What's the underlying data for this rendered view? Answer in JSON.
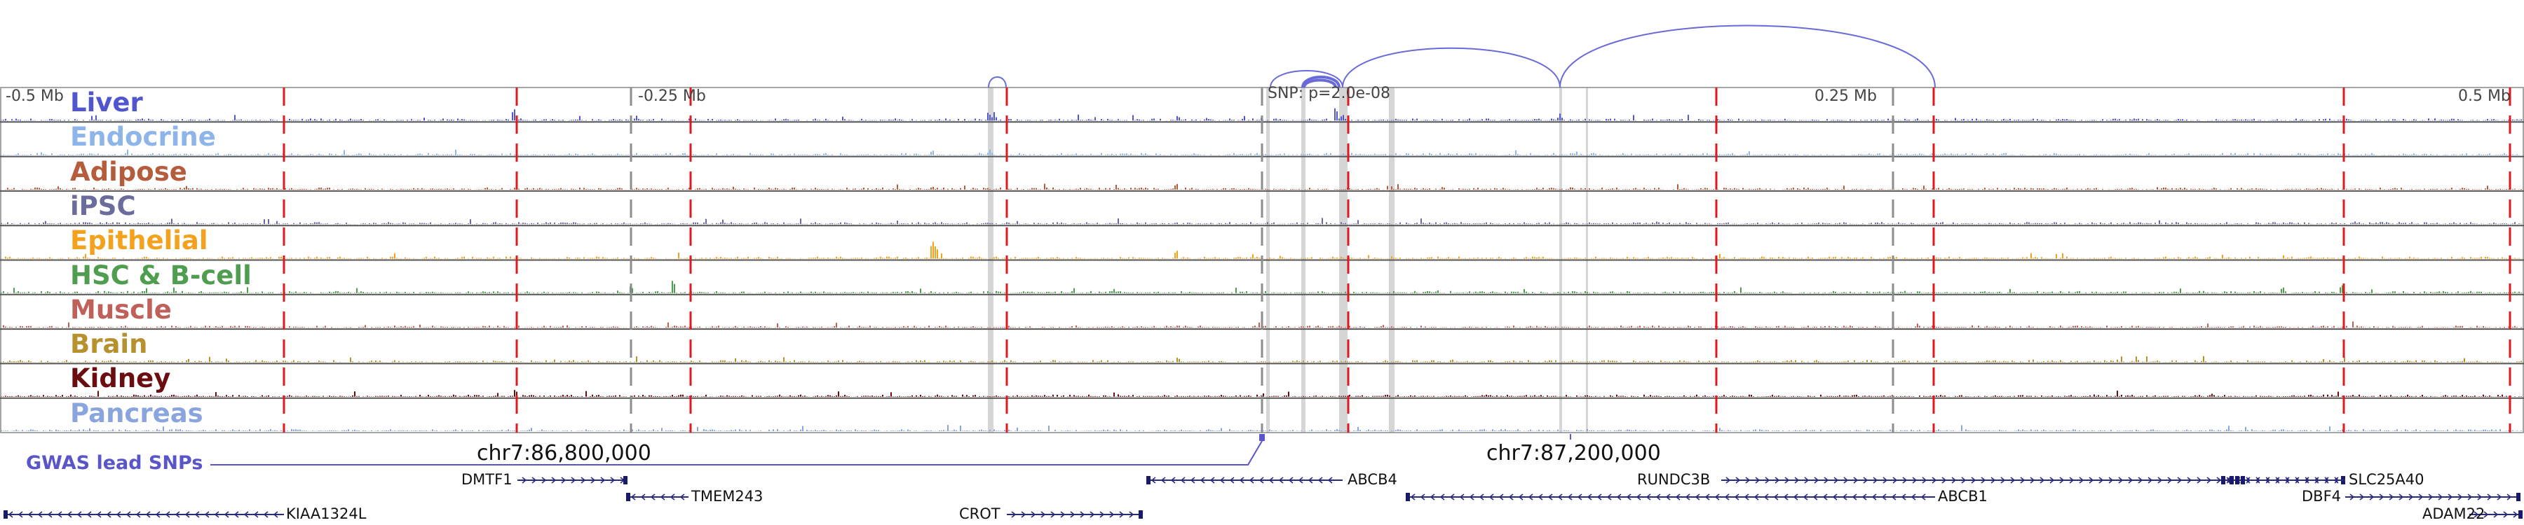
{
  "axis": {
    "ticks": [
      "-0.5 Mb",
      "-0.25 Mb",
      "0.25 Mb",
      "0.5 Mb"
    ],
    "snp_label": "SNP: p=2.0e-08"
  },
  "tracks": [
    {
      "name": "Liver",
      "color": "#4f56cf"
    },
    {
      "name": "Endocrine",
      "color": "#8db5ea"
    },
    {
      "name": "Adipose",
      "color": "#b45c3c"
    },
    {
      "name": "iPSC",
      "color": "#6b6b9e"
    },
    {
      "name": "Epithelial",
      "color": "#f4a21e"
    },
    {
      "name": "HSC & B-cell",
      "color": "#4f9d4f"
    },
    {
      "name": "Muscle",
      "color": "#c0605a"
    },
    {
      "name": "Brain",
      "color": "#b8912f"
    },
    {
      "name": "Kidney",
      "color": "#6a0c10"
    },
    {
      "name": "Pancreas",
      "color": "#8aa5dd"
    }
  ],
  "coordinates": {
    "left": "chr7:86,800,000",
    "right": "chr7:87,200,000"
  },
  "gwas_label": "GWAS lead SNPs",
  "genes": [
    {
      "name": "DMTF1",
      "strand": "+"
    },
    {
      "name": "ABCB4",
      "strand": "-"
    },
    {
      "name": "RUNDC3B",
      "strand": "+"
    },
    {
      "name": "SLC25A40",
      "strand": "-"
    },
    {
      "name": "TMEM243",
      "strand": "-"
    },
    {
      "name": "ABCB1",
      "strand": "-"
    },
    {
      "name": "DBF4",
      "strand": "+"
    },
    {
      "name": "KIAA1324L",
      "strand": "-"
    },
    {
      "name": "CROT",
      "strand": "+"
    },
    {
      "name": "ADAM22",
      "strand": "+"
    }
  ],
  "colors": {
    "red_lines": "#e0191e",
    "gray_lines": "#8c8c8c",
    "arcs": "#6a6ad8",
    "highlight": "#c8c8c8"
  }
}
